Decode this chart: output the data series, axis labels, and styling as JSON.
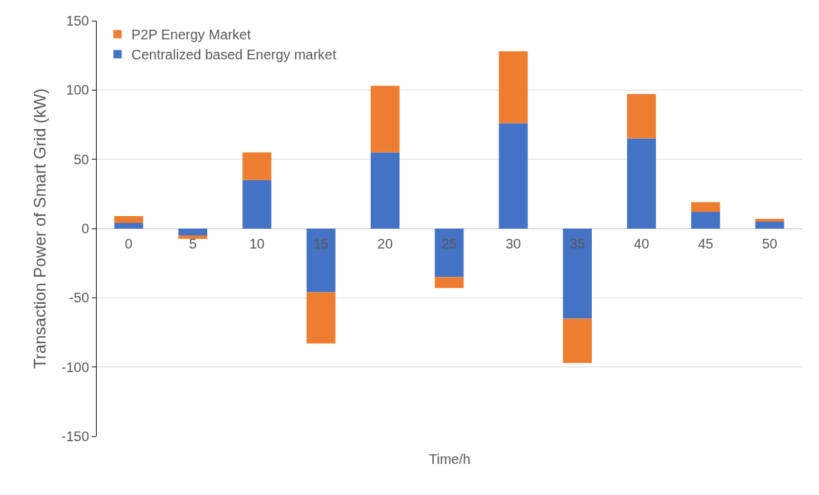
{
  "chart_data": {
    "type": "bar",
    "stacked": true,
    "xlabel": "Time/h",
    "ylabel": "Transaction Power of Smart Grid (kW)",
    "categories": [
      "0",
      "5",
      "10",
      "15",
      "20",
      "25",
      "30",
      "35",
      "40",
      "45",
      "50"
    ],
    "series": [
      {
        "name": "Centralized based Energy market",
        "color": "#4472c4",
        "values": [
          4,
          -5,
          35,
          -46,
          55,
          -35,
          76,
          -65,
          65,
          12,
          5
        ]
      },
      {
        "name": "P2P Energy Market",
        "color": "#ed7d31",
        "values": [
          5,
          -2.5,
          20,
          -37,
          48,
          -8,
          52,
          -32,
          32,
          7,
          2
        ]
      }
    ],
    "ylim": [
      -150,
      150
    ],
    "yticks": [
      -150,
      -100,
      -50,
      0,
      50,
      100,
      150
    ],
    "grid": "y",
    "legend": "top left"
  }
}
